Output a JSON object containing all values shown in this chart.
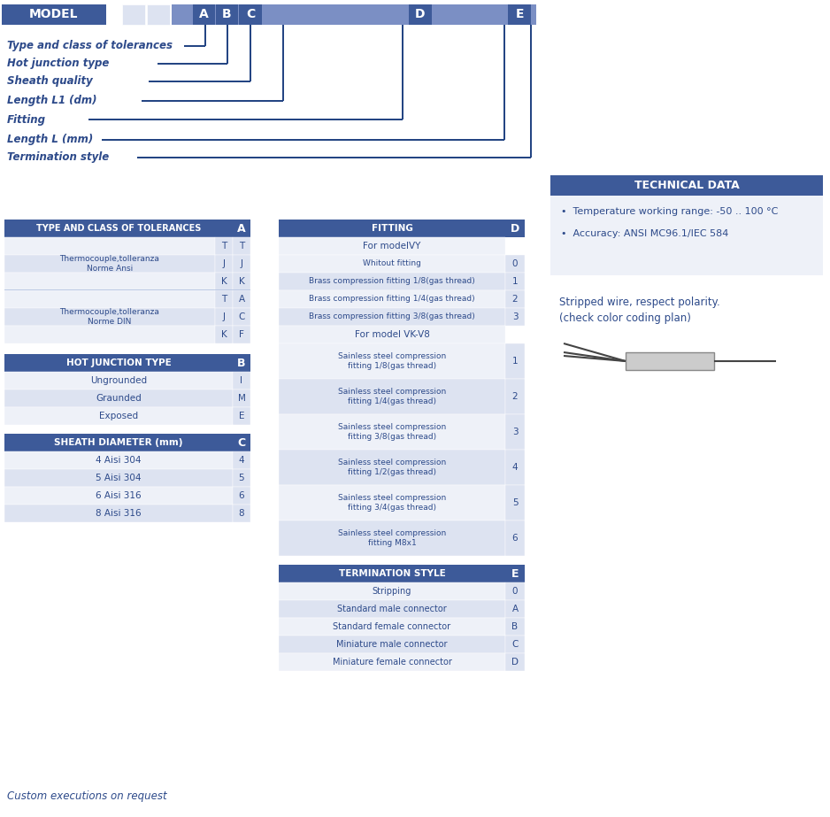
{
  "bg": "#ffffff",
  "hdr_blue": "#3d5a99",
  "cell_a": "#eef1f8",
  "cell_b": "#dde3f1",
  "text_blue": "#2d4a8a",
  "stripe_mid": "#7b8fc4",
  "left_labels": [
    "Type and class of tolerances",
    "Hot junction type",
    "Sheath quality",
    "Length L1 (dm)",
    "Fitting",
    "Length L (mm)",
    "Termination style"
  ],
  "tol_ansi": [
    [
      "T",
      "T"
    ],
    [
      "J",
      "J"
    ],
    [
      "K",
      "K"
    ]
  ],
  "tol_din": [
    [
      "T",
      "A"
    ],
    [
      "J",
      "C"
    ],
    [
      "K",
      "F"
    ]
  ],
  "hj": [
    [
      "Ungrounded",
      "I"
    ],
    [
      "Graunded",
      "M"
    ],
    [
      "Exposed",
      "E"
    ]
  ],
  "sheath": [
    [
      "4 Aisi 304",
      "4"
    ],
    [
      "5 Aisi 304",
      "5"
    ],
    [
      "6 Aisi 316",
      "6"
    ],
    [
      "8 Aisi 316",
      "8"
    ]
  ],
  "fitting_ivy": [
    [
      "For modelVY",
      ""
    ],
    [
      "Whitout fitting",
      "0"
    ],
    [
      "Brass compression fitting 1/8(gas thread)",
      "1"
    ],
    [
      "Brass compression fitting 1/4(gas thread)",
      "2"
    ],
    [
      "Brass compression fitting 3/8(gas thread)",
      "3"
    ]
  ],
  "fitting_vk": [
    [
      "Sainless steel compression\nfitting 1/8(gas thread)",
      "1"
    ],
    [
      "Sainless steel compression\nfitting 1/4(gas thread)",
      "2"
    ],
    [
      "Sainless steel compression\nfitting 3/8(gas thread)",
      "3"
    ],
    [
      "Sainless steel compression\nfitting 1/2(gas thread)",
      "4"
    ],
    [
      "Sainless steel compression\nfitting 3/4(gas thread)",
      "5"
    ],
    [
      "Sainless steel compression\nfitting M8x1",
      "6"
    ]
  ],
  "termination": [
    [
      "Stripping",
      "0"
    ],
    [
      "Standard male connector",
      "A"
    ],
    [
      "Standard female connector",
      "B"
    ],
    [
      "Miniature male connector",
      "C"
    ],
    [
      "Miniature female connector",
      "D"
    ]
  ],
  "tech_bullets": [
    "Temperature working range: -50 .. 100 °C",
    "Accuracy: ANSI MC96.1/IEC 584"
  ],
  "stripped_line1": "Stripped wire, respect polarity.",
  "stripped_line2": "(check color coding plan)",
  "footer": "Custom executions on request"
}
